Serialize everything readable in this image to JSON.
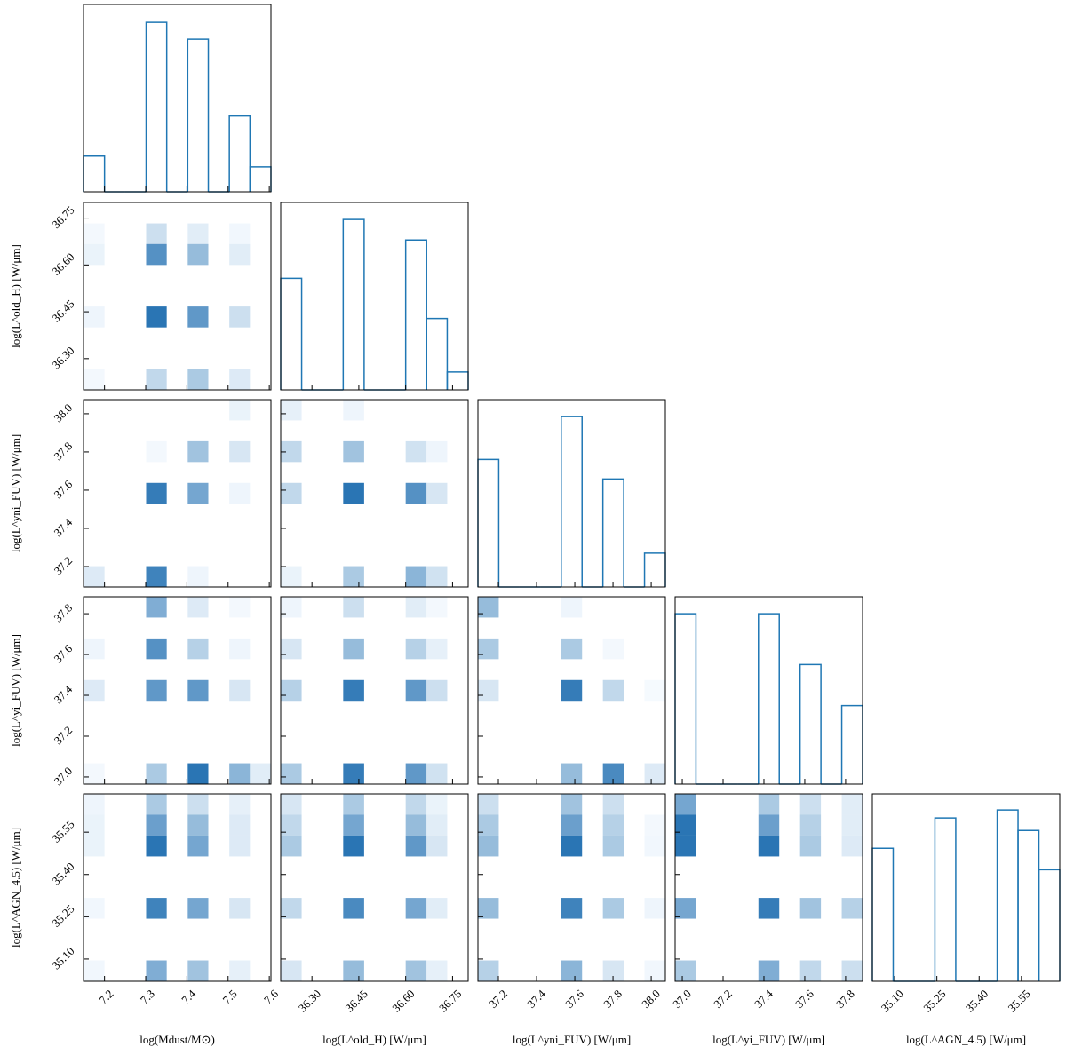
{
  "chart_data": {
    "type": "corner",
    "color": "#1f77b4",
    "hist_ylim": [
      0,
      210
    ],
    "params": [
      {
        "label": "log(Mdust/M⊙)",
        "lim": [
          7.149,
          7.604
        ],
        "ticks": [
          7.2,
          7.3,
          7.4,
          7.5,
          7.6
        ],
        "bins": [
          7.149,
          7.2,
          7.25,
          7.301,
          7.351,
          7.402,
          7.452,
          7.503,
          7.553,
          7.604
        ],
        "hist": [
          40,
          0,
          0,
          190,
          0,
          171,
          0,
          85,
          28
        ]
      },
      {
        "label": "log(L^old_H) [W/μm]",
        "lim": [
          36.2,
          36.8
        ],
        "ticks": [
          {
            "value": 36.3,
            "label": "36.30"
          },
          36.45,
          {
            "value": 36.6,
            "label": "36.60"
          },
          36.75
        ],
        "bins": [
          36.2,
          36.267,
          36.333,
          36.4,
          36.467,
          36.533,
          36.6,
          36.667,
          36.733,
          36.8
        ],
        "hist": [
          125,
          0,
          0,
          191,
          0,
          0,
          168,
          80,
          20
        ]
      },
      {
        "label": "log(L^yni_FUV) [W/μm]",
        "lim": [
          37.093,
          38.074
        ],
        "ticks": [
          37.2,
          37.4,
          37.6,
          37.8,
          {
            "value": 38,
            "label": "38.0"
          }
        ],
        "bins": [
          37.093,
          37.202,
          37.311,
          37.42,
          37.529,
          37.638,
          37.747,
          37.856,
          37.965,
          38.074
        ],
        "hist": [
          143,
          0,
          0,
          0,
          191,
          0,
          121,
          0,
          38
        ]
      },
      {
        "label": "log(L^yi_FUV) [W/μm]",
        "lim": [
          36.965,
          37.883
        ],
        "ticks": [
          {
            "value": 37,
            "label": "37.0"
          },
          37.2,
          37.4,
          37.6,
          37.8
        ],
        "bins": [
          36.965,
          37.067,
          37.169,
          37.271,
          37.373,
          37.475,
          37.577,
          37.679,
          37.781,
          37.883
        ],
        "hist": [
          191,
          0,
          0,
          0,
          191,
          0,
          134,
          0,
          88
        ]
      },
      {
        "label": "log(L^AGN_4.5) [W/μm]",
        "lim": [
          35.021,
          35.686
        ],
        "ticks": [
          {
            "value": 35.1,
            "label": "35.10"
          },
          35.25,
          {
            "value": 35.4,
            "label": "35.40"
          },
          35.55
        ],
        "bins": [
          35.021,
          35.095,
          35.169,
          35.243,
          35.317,
          35.391,
          35.464,
          35.538,
          35.612,
          35.686
        ],
        "hist": [
          149,
          0,
          0,
          183,
          0,
          0,
          192,
          169,
          125
        ]
      }
    ],
    "pairs": [
      {
        "x": 0,
        "y": 1,
        "cells": [
          [
            0,
            7,
            2
          ],
          [
            3,
            7,
            20
          ],
          [
            5,
            7,
            10
          ],
          [
            7,
            7,
            3
          ],
          [
            0,
            6,
            6
          ],
          [
            3,
            6,
            75
          ],
          [
            5,
            6,
            45
          ],
          [
            7,
            6,
            10
          ],
          [
            0,
            3,
            4
          ],
          [
            3,
            3,
            95
          ],
          [
            5,
            3,
            70
          ],
          [
            7,
            3,
            20
          ],
          [
            0,
            0,
            2
          ],
          [
            3,
            0,
            25
          ],
          [
            5,
            0,
            35
          ],
          [
            7,
            0,
            12
          ]
        ]
      },
      {
        "x": 0,
        "y": 2,
        "cells": [
          [
            7,
            8,
            6
          ],
          [
            3,
            6,
            2
          ],
          [
            5,
            6,
            40
          ],
          [
            7,
            6,
            15
          ],
          [
            3,
            4,
            90
          ],
          [
            5,
            4,
            60
          ],
          [
            7,
            4,
            4
          ],
          [
            0,
            0,
            12
          ],
          [
            3,
            0,
            85
          ],
          [
            5,
            0,
            4
          ]
        ]
      },
      {
        "x": 1,
        "y": 2,
        "cells": [
          [
            0,
            8,
            8
          ],
          [
            3,
            8,
            4
          ],
          [
            0,
            6,
            25
          ],
          [
            3,
            6,
            40
          ],
          [
            6,
            6,
            18
          ],
          [
            7,
            6,
            4
          ],
          [
            0,
            4,
            25
          ],
          [
            3,
            4,
            95
          ],
          [
            6,
            4,
            75
          ],
          [
            7,
            4,
            15
          ],
          [
            0,
            0,
            6
          ],
          [
            3,
            0,
            35
          ],
          [
            6,
            0,
            50
          ],
          [
            7,
            0,
            18
          ]
        ]
      },
      {
        "x": 0,
        "y": 3,
        "cells": [
          [
            3,
            8,
            55
          ],
          [
            5,
            8,
            12
          ],
          [
            7,
            8,
            2
          ],
          [
            0,
            6,
            4
          ],
          [
            3,
            6,
            75
          ],
          [
            5,
            6,
            30
          ],
          [
            7,
            6,
            4
          ],
          [
            0,
            4,
            12
          ],
          [
            3,
            4,
            70
          ],
          [
            5,
            4,
            70
          ],
          [
            7,
            4,
            15
          ],
          [
            0,
            0,
            2
          ],
          [
            3,
            0,
            35
          ],
          [
            5,
            0,
            95
          ],
          [
            7,
            0,
            50
          ],
          [
            8,
            0,
            10
          ]
        ]
      },
      {
        "x": 1,
        "y": 3,
        "cells": [
          [
            0,
            8,
            4
          ],
          [
            3,
            8,
            20
          ],
          [
            6,
            8,
            10
          ],
          [
            7,
            8,
            2
          ],
          [
            0,
            6,
            15
          ],
          [
            3,
            6,
            45
          ],
          [
            6,
            6,
            30
          ],
          [
            7,
            6,
            8
          ],
          [
            0,
            4,
            30
          ],
          [
            3,
            4,
            90
          ],
          [
            6,
            4,
            70
          ],
          [
            7,
            4,
            20
          ],
          [
            0,
            0,
            35
          ],
          [
            3,
            0,
            90
          ],
          [
            6,
            0,
            70
          ],
          [
            7,
            0,
            18
          ]
        ]
      },
      {
        "x": 2,
        "y": 3,
        "cells": [
          [
            0,
            8,
            45
          ],
          [
            4,
            8,
            4
          ],
          [
            0,
            6,
            35
          ],
          [
            4,
            6,
            35
          ],
          [
            6,
            6,
            2
          ],
          [
            0,
            4,
            15
          ],
          [
            4,
            4,
            90
          ],
          [
            6,
            4,
            25
          ],
          [
            8,
            4,
            1
          ],
          [
            4,
            0,
            45
          ],
          [
            6,
            0,
            80
          ],
          [
            8,
            0,
            12
          ]
        ]
      },
      {
        "x": 0,
        "y": 4,
        "cells": [
          [
            0,
            8,
            4
          ],
          [
            3,
            8,
            35
          ],
          [
            5,
            8,
            20
          ],
          [
            7,
            8,
            8
          ],
          [
            0,
            7,
            6
          ],
          [
            3,
            7,
            65
          ],
          [
            5,
            7,
            45
          ],
          [
            7,
            7,
            12
          ],
          [
            0,
            6,
            6
          ],
          [
            3,
            6,
            95
          ],
          [
            5,
            6,
            60
          ],
          [
            7,
            6,
            12
          ],
          [
            0,
            3,
            3
          ],
          [
            3,
            3,
            85
          ],
          [
            5,
            3,
            60
          ],
          [
            7,
            3,
            15
          ],
          [
            0,
            0,
            3
          ],
          [
            3,
            0,
            55
          ],
          [
            5,
            0,
            40
          ],
          [
            7,
            0,
            8
          ]
        ]
      },
      {
        "x": 1,
        "y": 4,
        "cells": [
          [
            0,
            8,
            15
          ],
          [
            3,
            8,
            35
          ],
          [
            6,
            8,
            25
          ],
          [
            7,
            8,
            6
          ],
          [
            0,
            7,
            25
          ],
          [
            3,
            7,
            60
          ],
          [
            6,
            7,
            45
          ],
          [
            7,
            7,
            10
          ],
          [
            0,
            6,
            35
          ],
          [
            3,
            6,
            95
          ],
          [
            6,
            6,
            70
          ],
          [
            7,
            6,
            15
          ],
          [
            0,
            3,
            25
          ],
          [
            3,
            3,
            80
          ],
          [
            6,
            3,
            60
          ],
          [
            7,
            3,
            10
          ],
          [
            0,
            0,
            15
          ],
          [
            3,
            0,
            45
          ],
          [
            6,
            0,
            40
          ],
          [
            7,
            0,
            8
          ]
        ]
      },
      {
        "x": 2,
        "y": 4,
        "cells": [
          [
            0,
            8,
            20
          ],
          [
            4,
            8,
            40
          ],
          [
            6,
            8,
            20
          ],
          [
            0,
            7,
            35
          ],
          [
            4,
            7,
            65
          ],
          [
            6,
            7,
            30
          ],
          [
            8,
            7,
            2
          ],
          [
            0,
            6,
            45
          ],
          [
            4,
            6,
            95
          ],
          [
            6,
            6,
            35
          ],
          [
            8,
            6,
            3
          ],
          [
            0,
            3,
            45
          ],
          [
            4,
            3,
            85
          ],
          [
            6,
            3,
            35
          ],
          [
            8,
            3,
            4
          ],
          [
            0,
            0,
            30
          ],
          [
            4,
            0,
            50
          ],
          [
            6,
            0,
            15
          ],
          [
            8,
            0,
            3
          ]
        ]
      },
      {
        "x": 3,
        "y": 4,
        "cells": [
          [
            0,
            8,
            60
          ],
          [
            4,
            8,
            35
          ],
          [
            6,
            8,
            20
          ],
          [
            8,
            8,
            10
          ],
          [
            0,
            7,
            95
          ],
          [
            4,
            7,
            65
          ],
          [
            6,
            7,
            30
          ],
          [
            8,
            7,
            10
          ],
          [
            0,
            6,
            95
          ],
          [
            4,
            6,
            95
          ],
          [
            6,
            6,
            35
          ],
          [
            8,
            6,
            12
          ],
          [
            0,
            3,
            60
          ],
          [
            4,
            3,
            90
          ],
          [
            6,
            3,
            40
          ],
          [
            8,
            3,
            30
          ],
          [
            0,
            0,
            35
          ],
          [
            4,
            0,
            55
          ],
          [
            6,
            0,
            25
          ],
          [
            8,
            0,
            20
          ]
        ]
      }
    ]
  }
}
